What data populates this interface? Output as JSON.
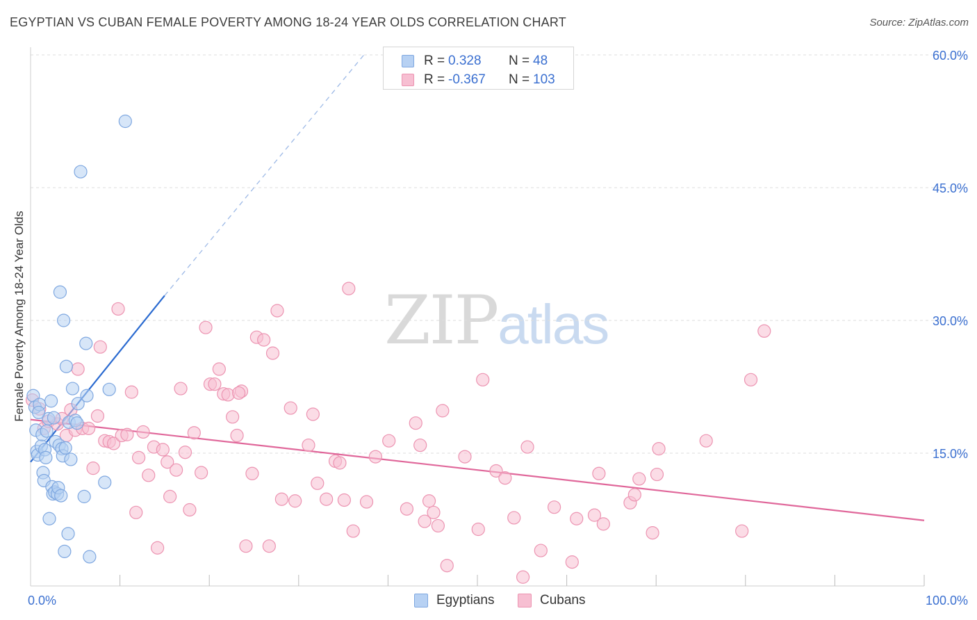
{
  "title": "EGYPTIAN VS CUBAN FEMALE POVERTY AMONG 18-24 YEAR OLDS CORRELATION CHART",
  "source": "Source: ZipAtlas.com",
  "watermark": {
    "zip": "ZIP",
    "atlas": "atlas"
  },
  "colors": {
    "egyptians_fill": "#b7d1f3",
    "egyptians_stroke": "#7ea7e0",
    "egyptians_line": "#2a6ad0",
    "cubans_fill": "#f7bfd2",
    "cubans_stroke": "#ec93b1",
    "cubans_line": "#e0679a",
    "tick_label": "#3a6fd0",
    "grid": "#dddddd"
  },
  "legend": {
    "rows": [
      {
        "r_label": "R =",
        "r_value": "0.328",
        "n_label": "N =",
        "n_value": "48",
        "series": "egyptians"
      },
      {
        "r_label": "R =",
        "r_value": "-0.367",
        "n_label": "N =",
        "n_value": "103",
        "series": "cubans"
      }
    ]
  },
  "bottom_legend": {
    "egyptians": "Egyptians",
    "cubans": "Cubans"
  },
  "chart_data": {
    "type": "scatter",
    "title": "EGYPTIAN VS CUBAN FEMALE POVERTY AMONG 18-24 YEAR OLDS CORRELATION CHART",
    "xlabel": "",
    "ylabel": "Female Poverty Among 18-24 Year Olds",
    "xlim": [
      0,
      100
    ],
    "ylim": [
      0,
      60
    ],
    "x_ticks": [
      {
        "value": 0,
        "label": "0.0%"
      },
      {
        "value": 100,
        "label": "100.0%"
      }
    ],
    "y_ticks": [
      {
        "value": 15,
        "label": "15.0%"
      },
      {
        "value": 30,
        "label": "30.0%"
      },
      {
        "value": 45,
        "label": "45.0%"
      },
      {
        "value": 60,
        "label": "60.0%"
      }
    ],
    "grid": "horizontal dashed",
    "legend_placement": "top-center",
    "series": [
      {
        "name": "Egyptians",
        "trend": {
          "x0": 0,
          "y0": 14.0,
          "x1": 15.0,
          "y1": 32.8,
          "dashed_to_x": 37.3,
          "dashed_to_y": 60.0
        },
        "points": [
          [
            0.3,
            21.5
          ],
          [
            0.5,
            20.2
          ],
          [
            0.6,
            17.6
          ],
          [
            0.7,
            15.2
          ],
          [
            0.8,
            14.8
          ],
          [
            1.0,
            20.5
          ],
          [
            1.2,
            15.8
          ],
          [
            1.3,
            17.1
          ],
          [
            1.4,
            12.8
          ],
          [
            1.5,
            11.9
          ],
          [
            1.6,
            15.4
          ],
          [
            1.7,
            14.5
          ],
          [
            1.8,
            17.5
          ],
          [
            2.0,
            18.9
          ],
          [
            2.1,
            7.6
          ],
          [
            2.3,
            20.9
          ],
          [
            2.4,
            11.2
          ],
          [
            2.5,
            10.4
          ],
          [
            2.6,
            19.0
          ],
          [
            2.7,
            10.6
          ],
          [
            2.8,
            16.3
          ],
          [
            3.0,
            10.4
          ],
          [
            3.1,
            11.1
          ],
          [
            3.2,
            15.9
          ],
          [
            3.3,
            33.2
          ],
          [
            3.4,
            10.2
          ],
          [
            3.5,
            15.5
          ],
          [
            3.6,
            14.7
          ],
          [
            3.7,
            30.0
          ],
          [
            3.8,
            3.9
          ],
          [
            3.9,
            15.6
          ],
          [
            4.0,
            24.8
          ],
          [
            4.2,
            5.9
          ],
          [
            4.3,
            18.5
          ],
          [
            4.5,
            14.3
          ],
          [
            4.7,
            22.3
          ],
          [
            5.0,
            18.7
          ],
          [
            5.2,
            18.4
          ],
          [
            5.3,
            20.6
          ],
          [
            5.6,
            46.8
          ],
          [
            6.0,
            10.1
          ],
          [
            6.2,
            27.4
          ],
          [
            6.3,
            21.5
          ],
          [
            6.6,
            3.3
          ],
          [
            8.3,
            11.7
          ],
          [
            8.8,
            22.2
          ],
          [
            10.6,
            52.5
          ],
          [
            0.9,
            19.6
          ]
        ]
      },
      {
        "name": "Cubans",
        "trend": {
          "x0": 0,
          "y0": 18.8,
          "x1": 100,
          "y1": 7.4
        },
        "points": [
          [
            0.2,
            21.0
          ],
          [
            1.0,
            20.0
          ],
          [
            1.5,
            17.8
          ],
          [
            2.0,
            18.6
          ],
          [
            3.0,
            18.3
          ],
          [
            3.5,
            18.9
          ],
          [
            4.0,
            17.0
          ],
          [
            4.5,
            19.9
          ],
          [
            5.0,
            17.6
          ],
          [
            5.3,
            24.5
          ],
          [
            5.8,
            17.8
          ],
          [
            6.5,
            17.8
          ],
          [
            7.0,
            13.3
          ],
          [
            7.5,
            19.2
          ],
          [
            7.8,
            27.0
          ],
          [
            8.3,
            16.4
          ],
          [
            8.8,
            16.3
          ],
          [
            9.3,
            16.1
          ],
          [
            9.8,
            31.3
          ],
          [
            10.2,
            17.0
          ],
          [
            10.8,
            17.1
          ],
          [
            11.3,
            21.9
          ],
          [
            11.8,
            8.3
          ],
          [
            12.1,
            14.5
          ],
          [
            12.6,
            17.4
          ],
          [
            13.2,
            12.5
          ],
          [
            13.8,
            15.7
          ],
          [
            14.2,
            4.3
          ],
          [
            14.8,
            15.4
          ],
          [
            15.3,
            14.0
          ],
          [
            15.6,
            10.1
          ],
          [
            16.3,
            13.1
          ],
          [
            16.8,
            22.3
          ],
          [
            17.3,
            15.1
          ],
          [
            17.8,
            8.6
          ],
          [
            18.3,
            17.3
          ],
          [
            19.1,
            12.8
          ],
          [
            19.6,
            29.2
          ],
          [
            20.1,
            22.8
          ],
          [
            20.6,
            22.8
          ],
          [
            21.1,
            24.5
          ],
          [
            21.6,
            21.7
          ],
          [
            22.1,
            21.6
          ],
          [
            22.6,
            19.1
          ],
          [
            23.1,
            17.0
          ],
          [
            23.6,
            22.0
          ],
          [
            24.1,
            4.5
          ],
          [
            24.8,
            12.7
          ],
          [
            25.3,
            28.1
          ],
          [
            26.1,
            27.8
          ],
          [
            26.7,
            4.5
          ],
          [
            27.1,
            26.3
          ],
          [
            27.6,
            31.1
          ],
          [
            28.1,
            9.8
          ],
          [
            29.1,
            20.1
          ],
          [
            29.6,
            9.6
          ],
          [
            31.1,
            15.9
          ],
          [
            31.6,
            19.4
          ],
          [
            32.1,
            11.6
          ],
          [
            33.1,
            9.8
          ],
          [
            34.1,
            14.1
          ],
          [
            34.6,
            13.9
          ],
          [
            35.1,
            9.7
          ],
          [
            35.6,
            33.6
          ],
          [
            36.1,
            6.2
          ],
          [
            37.6,
            9.5
          ],
          [
            40.1,
            16.4
          ],
          [
            42.1,
            8.7
          ],
          [
            43.1,
            18.4
          ],
          [
            43.6,
            15.9
          ],
          [
            44.1,
            7.3
          ],
          [
            44.6,
            9.6
          ],
          [
            45.1,
            8.3
          ],
          [
            45.6,
            6.8
          ],
          [
            46.1,
            19.8
          ],
          [
            46.6,
            2.3
          ],
          [
            48.6,
            14.6
          ],
          [
            50.1,
            6.4
          ],
          [
            50.6,
            23.3
          ],
          [
            52.1,
            13.0
          ],
          [
            53.1,
            12.2
          ],
          [
            54.1,
            7.7
          ],
          [
            55.1,
            1.0
          ],
          [
            55.6,
            15.7
          ],
          [
            57.1,
            4.0
          ],
          [
            58.6,
            8.9
          ],
          [
            60.6,
            2.7
          ],
          [
            61.1,
            7.6
          ],
          [
            63.1,
            8.0
          ],
          [
            63.6,
            12.7
          ],
          [
            64.1,
            7.0
          ],
          [
            67.1,
            9.4
          ],
          [
            67.6,
            10.3
          ],
          [
            68.1,
            12.1
          ],
          [
            69.6,
            6.0
          ],
          [
            70.1,
            12.6
          ],
          [
            70.3,
            15.5
          ],
          [
            75.6,
            16.4
          ],
          [
            79.6,
            6.2
          ],
          [
            80.6,
            23.3
          ],
          [
            82.1,
            28.8
          ],
          [
            23.3,
            21.8
          ],
          [
            38.6,
            14.6
          ]
        ]
      }
    ]
  }
}
